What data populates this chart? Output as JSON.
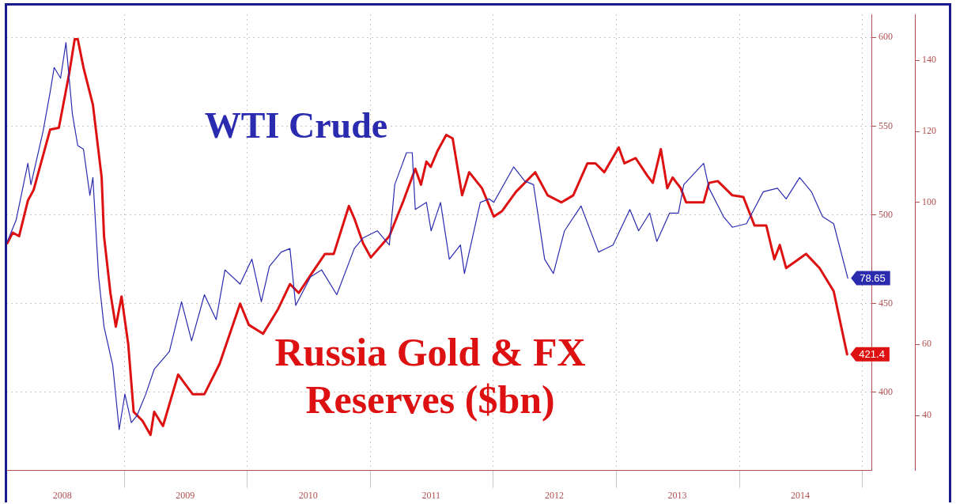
{
  "chart_data": {
    "type": "line",
    "series": [
      {
        "name": "WTI Crude",
        "color": "#2b2bb0",
        "axis": "y2",
        "x": [
          "2008-01-20",
          "2008-02-15",
          "2008-03-21",
          "2008-03-30",
          "2008-05-05",
          "2008-05-26",
          "2008-06-07",
          "2008-06-26",
          "2008-07-12",
          "2008-07-31",
          "2008-08-16",
          "2008-09-02",
          "2008-09-21",
          "2008-09-30",
          "2008-10-17",
          "2008-11-02",
          "2008-11-28",
          "2008-12-17",
          "2009-01-03",
          "2009-01-22",
          "2009-02-08",
          "2009-03-06",
          "2009-03-31",
          "2009-05-15",
          "2009-06-20",
          "2009-07-20",
          "2009-08-27",
          "2009-10-01",
          "2009-10-27",
          "2009-12-11",
          "2010-01-15",
          "2010-02-12",
          "2010-03-08",
          "2010-04-12",
          "2010-05-08",
          "2010-05-25",
          "2010-07-08",
          "2010-08-10",
          "2010-09-24",
          "2010-11-15",
          "2010-12-11",
          "2011-01-22",
          "2011-02-27",
          "2011-03-15",
          "2011-04-19",
          "2011-05-06",
          "2011-05-15",
          "2011-06-17",
          "2011-07-01",
          "2011-07-29",
          "2011-08-24",
          "2011-09-26",
          "2011-10-08",
          "2011-11-24",
          "2011-12-20",
          "2012-01-03",
          "2012-03-02",
          "2012-04-04",
          "2012-04-30",
          "2012-06-02",
          "2012-06-28",
          "2012-07-31",
          "2012-09-18",
          "2012-11-09",
          "2012-12-22",
          "2013-02-10",
          "2013-03-08",
          "2013-04-10",
          "2013-05-01",
          "2013-06-08",
          "2013-07-04",
          "2013-07-20",
          "2013-09-17",
          "2013-10-03",
          "2013-11-15",
          "2013-12-11",
          "2014-01-22",
          "2014-03-13",
          "2014-04-24",
          "2014-05-20",
          "2014-06-29",
          "2014-08-03",
          "2014-09-05",
          "2014-10-08",
          "2014-11-19"
        ],
        "values": [
          89,
          95,
          111,
          105,
          120,
          131,
          138,
          135,
          145,
          125,
          116,
          115,
          102,
          107,
          79,
          65,
          54,
          36,
          46,
          38,
          40,
          46,
          53,
          58,
          72,
          61,
          74,
          67,
          81,
          77,
          84,
          72,
          82,
          86,
          87,
          71,
          79,
          81,
          74,
          87,
          90,
          92,
          88,
          105,
          114,
          114,
          98,
          100,
          92,
          100,
          84,
          88,
          80,
          100,
          101,
          100,
          110,
          106,
          105,
          84,
          80,
          92,
          99,
          86,
          88,
          98,
          92,
          97,
          89,
          97,
          97,
          105,
          111,
          104,
          96,
          93,
          94,
          103,
          104,
          101,
          107,
          103,
          96,
          94,
          78.65
        ],
        "value_labels": [
          null,
          null,
          null,
          null,
          null,
          null,
          null,
          null,
          null,
          null,
          null,
          null,
          null,
          null,
          null,
          null,
          null,
          null,
          null,
          null,
          null,
          null,
          null,
          null,
          null,
          null,
          null,
          null,
          null,
          null,
          null,
          null,
          null,
          null,
          null,
          null,
          null,
          null,
          null,
          null,
          null,
          null,
          null,
          null,
          null,
          null,
          null,
          null,
          null,
          null,
          null,
          null,
          null,
          null,
          null,
          null,
          null,
          null,
          null,
          null,
          null,
          null,
          null,
          null,
          null,
          null,
          null,
          null,
          null,
          null,
          null,
          null,
          null,
          null,
          null,
          null,
          null,
          null,
          null,
          null,
          null,
          null,
          null,
          null,
          "78.65"
        ]
      },
      {
        "name": "Russia Gold & FX Reserves ($bn)",
        "color": "#dd1111",
        "x": [
          "2008-01-20",
          "2008-02-05",
          "2008-02-24",
          "2008-03-21",
          "2008-04-07",
          "2008-05-26",
          "2008-06-21",
          "2008-07-22",
          "2008-08-07",
          "2008-08-16",
          "2008-09-02",
          "2008-09-30",
          "2008-10-26",
          "2008-11-02",
          "2008-11-21",
          "2008-12-07",
          "2008-12-24",
          "2009-01-13",
          "2009-01-29",
          "2009-02-24",
          "2009-03-20",
          "2009-03-31",
          "2009-04-26",
          "2009-06-10",
          "2009-07-23",
          "2009-08-27",
          "2009-10-11",
          "2009-12-11",
          "2010-01-06",
          "2010-02-17",
          "2010-04-03",
          "2010-05-08",
          "2010-06-03",
          "2010-07-15",
          "2010-08-20",
          "2010-09-15",
          "2010-10-30",
          "2010-11-15",
          "2010-12-11",
          "2011-01-03",
          "2011-02-27",
          "2011-04-10",
          "2011-05-15",
          "2011-06-01",
          "2011-06-17",
          "2011-06-30",
          "2011-07-20",
          "2011-08-15",
          "2011-09-03",
          "2011-10-01",
          "2011-10-22",
          "2011-11-29",
          "2012-01-03",
          "2012-01-27",
          "2012-03-09",
          "2012-05-05",
          "2012-06-11",
          "2012-07-22",
          "2012-08-26",
          "2012-10-07",
          "2012-10-31",
          "2012-11-26",
          "2013-01-08",
          "2013-01-25",
          "2013-02-27",
          "2013-04-03",
          "2013-04-19",
          "2013-05-13",
          "2013-06-01",
          "2013-06-17",
          "2013-07-11",
          "2013-07-27",
          "2013-09-17",
          "2013-10-03",
          "2013-10-29",
          "2013-12-11",
          "2014-01-13",
          "2014-02-15",
          "2014-03-22",
          "2014-04-15",
          "2014-05-01",
          "2014-05-20",
          "2014-07-18",
          "2014-08-27",
          "2014-10-08",
          "2014-11-17"
        ],
        "values": [
          484,
          490,
          488,
          508,
          514,
          548,
          549,
          580,
          599,
          599,
          583,
          562,
          521,
          488,
          456,
          437,
          454,
          427,
          389,
          384,
          376,
          389,
          381,
          410,
          399,
          399,
          416,
          450,
          438,
          433,
          447,
          461,
          456,
          468,
          478,
          478,
          505,
          498,
          484,
          476,
          488,
          508,
          526,
          517,
          530,
          527,
          536,
          545,
          543,
          511,
          524,
          515,
          499,
          502,
          513,
          524,
          511,
          507,
          511,
          529,
          529,
          524,
          538,
          529,
          532,
          522,
          518,
          537,
          515,
          521,
          515,
          507,
          507,
          518,
          519,
          511,
          510,
          494,
          494,
          475,
          483,
          470,
          478,
          470,
          457,
          421.4
        ],
        "value_labels": [
          null,
          null,
          null,
          null,
          null,
          null,
          null,
          null,
          null,
          null,
          null,
          null,
          null,
          null,
          null,
          null,
          null,
          null,
          null,
          null,
          null,
          null,
          null,
          null,
          null,
          null,
          null,
          null,
          null,
          null,
          null,
          null,
          null,
          null,
          null,
          null,
          null,
          null,
          null,
          null,
          null,
          null,
          null,
          null,
          null,
          null,
          null,
          null,
          null,
          null,
          null,
          null,
          null,
          null,
          null,
          null,
          null,
          null,
          null,
          null,
          null,
          null,
          null,
          null,
          null,
          null,
          null,
          null,
          null,
          null,
          null,
          null,
          null,
          null,
          null,
          null,
          null,
          null,
          null,
          null,
          null,
          null,
          null,
          null,
          null,
          "421.4"
        ]
      }
    ],
    "xlim": [
      "2008-01-17",
      "2015-01-28"
    ],
    "xticks": [
      {
        "value": "2008-07-01",
        "label": "2008"
      },
      {
        "value": "2009-01-01",
        "label": null
      },
      {
        "value": "2009-07-01",
        "label": "2009"
      },
      {
        "value": "2010-01-01",
        "label": null
      },
      {
        "value": "2010-07-01",
        "label": "2010"
      },
      {
        "value": "2011-01-01",
        "label": null
      },
      {
        "value": "2011-07-01",
        "label": "2011"
      },
      {
        "value": "2012-01-01",
        "label": null
      },
      {
        "value": "2012-07-01",
        "label": "2012"
      },
      {
        "value": "2013-01-01",
        "label": null
      },
      {
        "value": "2013-07-01",
        "label": "2013"
      },
      {
        "value": "2014-01-01",
        "label": null
      },
      {
        "value": "2014-07-01",
        "label": "2014"
      },
      {
        "value": "2015-01-01",
        "label": null
      }
    ],
    "ylim": [
      356,
      613
    ],
    "yticks": [
      400,
      450,
      500,
      550,
      600
    ],
    "y2lim": [
      24.5,
      153
    ],
    "y2ticks": [
      40,
      60,
      100,
      120,
      140
    ],
    "grid": true
  }
}
